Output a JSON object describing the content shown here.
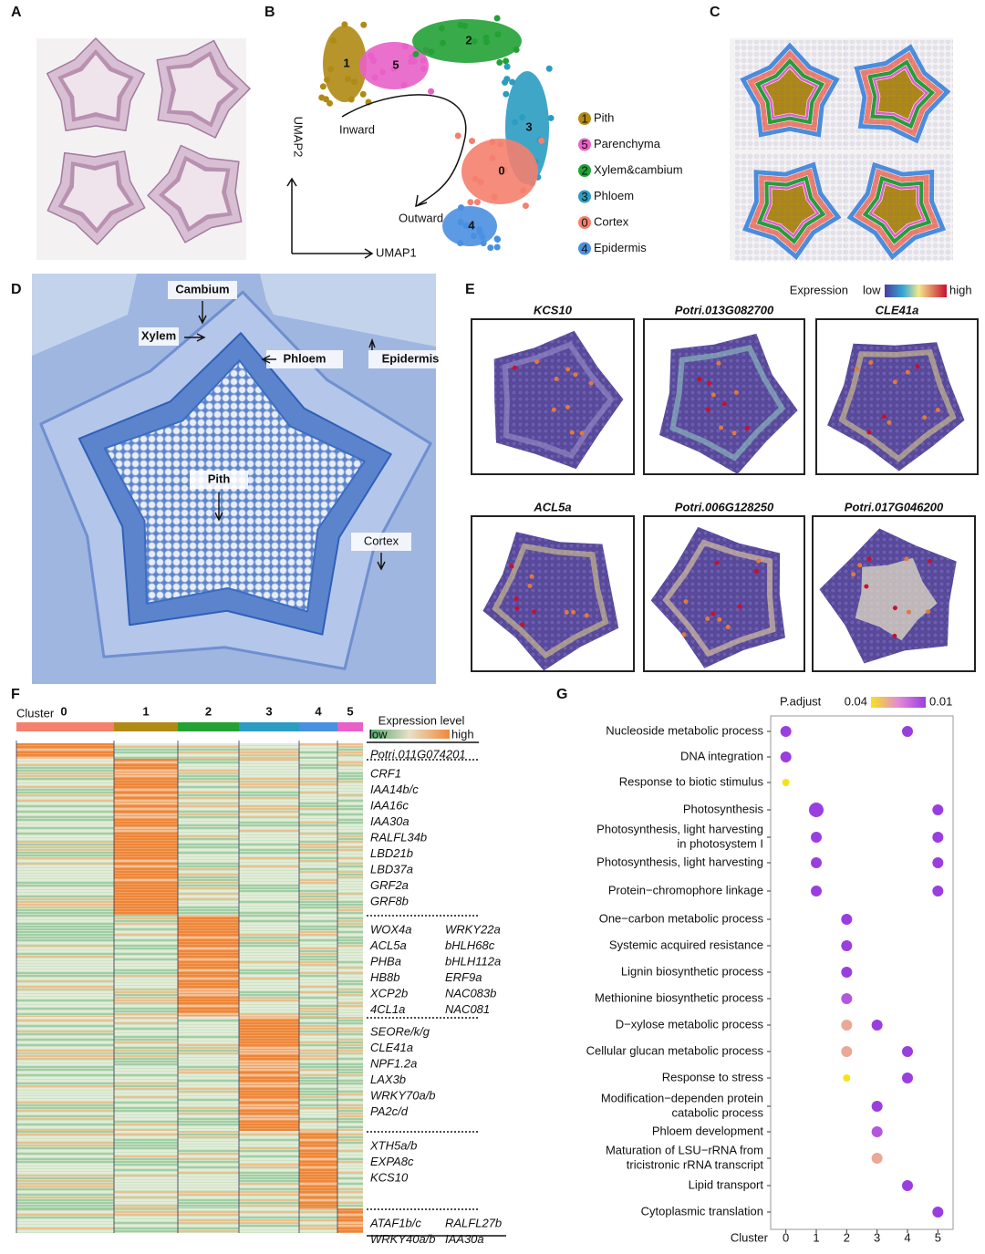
{
  "panel_labels": [
    "A",
    "B",
    "C",
    "D",
    "E",
    "F",
    "G"
  ],
  "B": {
    "x_label": "UMAP1",
    "y_label": "UMAP2",
    "inward": "Inward",
    "outward": "Outward",
    "clusters": [
      {
        "number": 1,
        "name": "Pith",
        "color": "#b08a14"
      },
      {
        "number": 5,
        "name": "Parenchyma",
        "color": "#e860c8"
      },
      {
        "number": 2,
        "name": "Xylem&cambium",
        "color": "#23a135"
      },
      {
        "number": 3,
        "name": "Phloem",
        "color": "#2b9cc2"
      },
      {
        "number": 0,
        "name": "Cortex",
        "color": "#f4806e"
      },
      {
        "number": 4,
        "name": "Epidermis",
        "color": "#4a90e0"
      }
    ]
  },
  "D": {
    "labels": [
      "Cambium",
      "Xylem",
      "Phloem",
      "Epidermis",
      "Pith",
      "Cortex"
    ]
  },
  "E": {
    "legend_title": "Expression",
    "low": "low",
    "high": "high",
    "genes": [
      "KCS10",
      "Potri.013G082700",
      "CLE41a",
      "ACL5a",
      "Potri.006G128250",
      "Potri.017G046200"
    ]
  },
  "F": {
    "cluster_label": "Cluster",
    "clusters": [
      0,
      1,
      2,
      3,
      4,
      5
    ],
    "legend_title": "Expression level",
    "low": "low",
    "high": "high",
    "gene_groups": [
      [
        [
          "Potri.011G074201"
        ]
      ],
      [
        [
          "CRF1",
          "IAA14b/c",
          "IAA16c",
          "IAA30a",
          "RALFL34b",
          "LBD21b",
          "LBD37a",
          "GRF2a",
          "GRF8b"
        ]
      ],
      [
        [
          "WOX4a",
          "ACL5a",
          "PHBa",
          "HB8b",
          "XCP2b",
          "4CL1a"
        ],
        [
          "WRKY22a",
          "bHLH68c",
          "bHLH112a",
          "ERF9a",
          "NAC083b",
          "NAC081"
        ]
      ],
      [
        [
          "SEORe/k/g",
          "CLE41a",
          "NPF1.2a",
          "LAX3b",
          "WRKY70a/b",
          "PA2c/d"
        ]
      ],
      [
        [
          "XTH5a/b",
          "EXPA8c",
          "KCS10"
        ]
      ],
      [
        [
          "ATAF1b/c",
          "WRKY40a/b"
        ],
        [
          "RALFL27b",
          "IAA30a"
        ]
      ]
    ]
  },
  "chart_data": {
    "type": "dot",
    "colorbar_label": "P.adjust",
    "clim": [
      0.04,
      0.01
    ],
    "cticks": [
      0.04,
      0.01
    ],
    "colors": [
      "#f5e31a",
      "#e58ad6",
      "#9a3ee0"
    ],
    "x_label": "Cluster",
    "xlim": [
      -0.5,
      5.5
    ],
    "xticks": [
      0,
      1,
      2,
      3,
      4,
      5
    ],
    "categories": [
      [
        "Nucleoside metabolic process"
      ],
      [
        "DNA integration"
      ],
      [
        "Response to biotic stimulus"
      ],
      [
        "Photosynthesis"
      ],
      [
        "Photosynthesis, light harvesting",
        "in photosystem I"
      ],
      [
        "Photosynthesis, light harvesting"
      ],
      [
        "Protein−chromophore linkage"
      ],
      [
        "One−carbon metabolic process"
      ],
      [
        "Systemic acquired resistance"
      ],
      [
        "Lignin biosynthetic process"
      ],
      [
        "Methionine biosynthetic process"
      ],
      [
        "D−xylose metabolic process"
      ],
      [
        "Cellular glucan metabolic process"
      ],
      [
        "Response to stress"
      ],
      [
        "Modification−dependen protein",
        "catabolic process"
      ],
      [
        "Phloem development"
      ],
      [
        "Maturation of LSU−rRNA from",
        "tricistronic rRNA transcript"
      ],
      [
        "Lipid transport"
      ],
      [
        "Cytoplasmic translation"
      ]
    ],
    "dots": [
      [
        {
          "x": 0,
          "padj": 0.01
        },
        {
          "x": 4,
          "padj": 0.01
        }
      ],
      [
        {
          "x": 0,
          "padj": 0.01
        }
      ],
      [
        {
          "x": 0,
          "padj": 0.04
        }
      ],
      [
        {
          "x": 1,
          "padj": 0.01
        },
        {
          "x": 5,
          "padj": 0.01
        }
      ],
      [
        {
          "x": 1,
          "padj": 0.01
        },
        {
          "x": 5,
          "padj": 0.01
        }
      ],
      [
        {
          "x": 1,
          "padj": 0.01
        },
        {
          "x": 5,
          "padj": 0.01
        }
      ],
      [
        {
          "x": 1,
          "padj": 0.01
        },
        {
          "x": 5,
          "padj": 0.01
        }
      ],
      [
        {
          "x": 2,
          "padj": 0.01
        }
      ],
      [
        {
          "x": 2,
          "padj": 0.01
        }
      ],
      [
        {
          "x": 2,
          "padj": 0.01
        }
      ],
      [
        {
          "x": 2,
          "padj": 0.015
        }
      ],
      [
        {
          "x": 2,
          "padj": 0.03
        },
        {
          "x": 3,
          "padj": 0.01
        }
      ],
      [
        {
          "x": 2,
          "padj": 0.03
        },
        {
          "x": 4,
          "padj": 0.01
        }
      ],
      [
        {
          "x": 2,
          "padj": 0.04
        },
        {
          "x": 4,
          "padj": 0.01
        }
      ],
      [
        {
          "x": 3,
          "padj": 0.01
        }
      ],
      [
        {
          "x": 3,
          "padj": 0.015
        }
      ],
      [
        {
          "x": 3,
          "padj": 0.03
        }
      ],
      [
        {
          "x": 4,
          "padj": 0.01
        }
      ],
      [
        {
          "x": 5,
          "padj": 0.01
        }
      ]
    ]
  }
}
